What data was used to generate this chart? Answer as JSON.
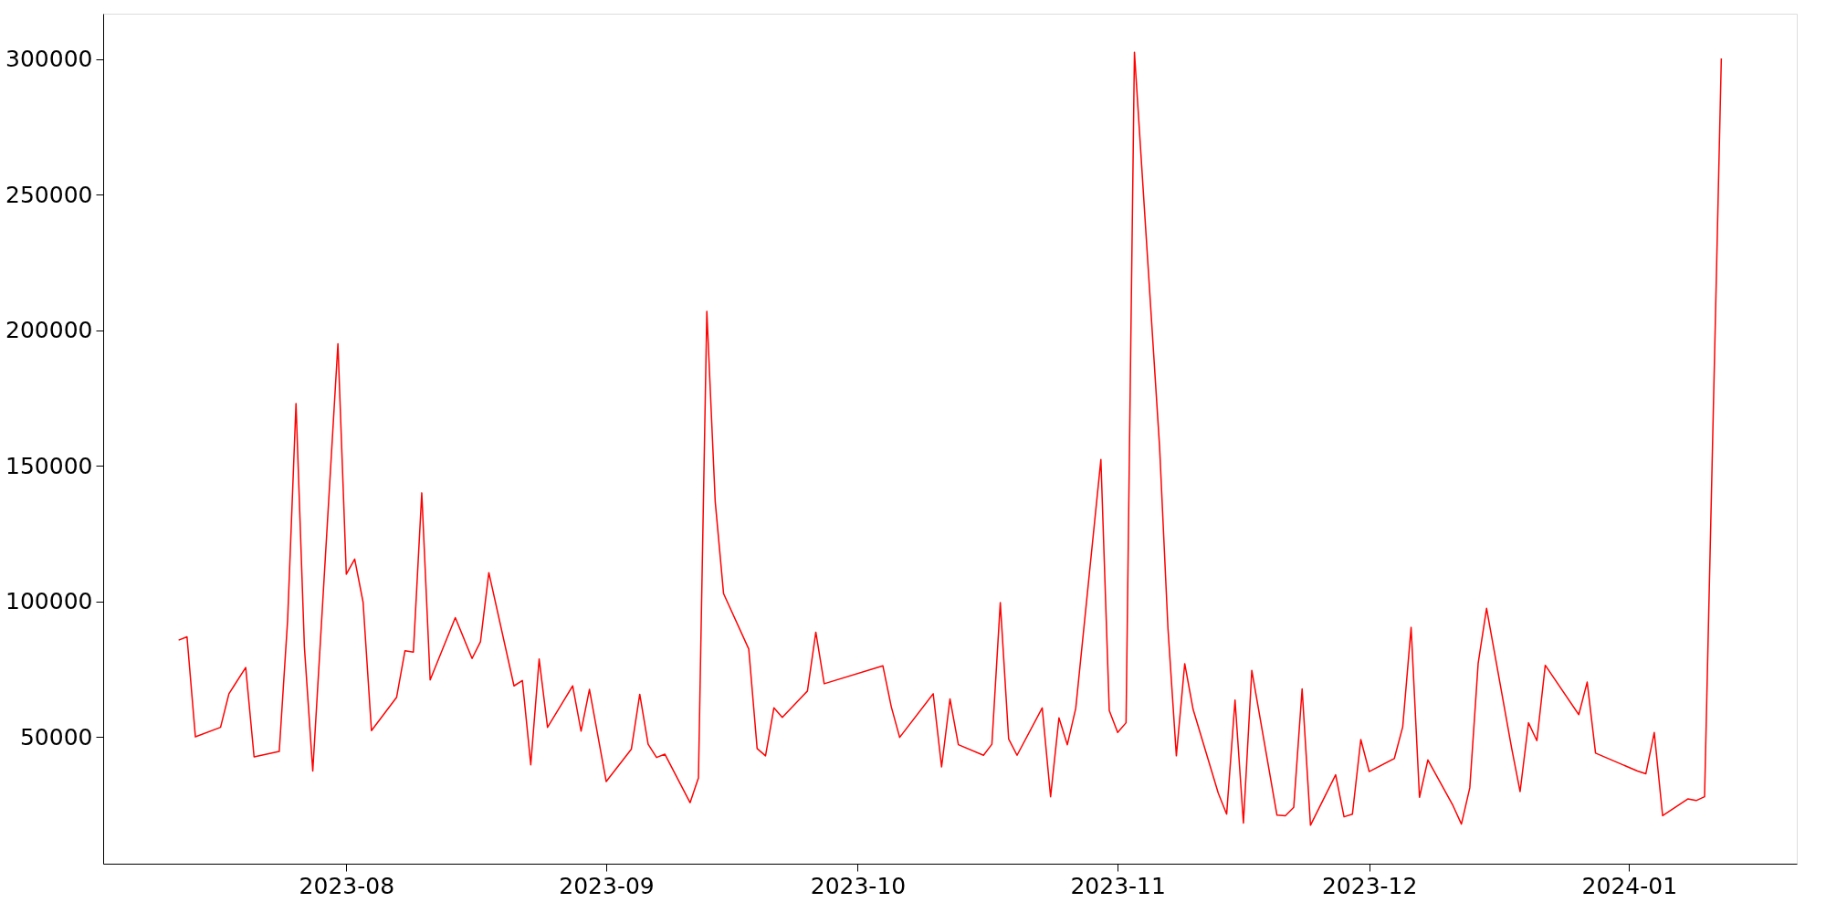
{
  "chart_data": {
    "type": "line",
    "x": [
      "2023-07-12",
      "2023-07-13",
      "2023-07-14",
      "2023-07-17",
      "2023-07-18",
      "2023-07-20",
      "2023-07-21",
      "2023-07-24",
      "2023-07-25",
      "2023-07-26",
      "2023-07-27",
      "2023-07-28",
      "2023-07-31",
      "2023-08-01",
      "2023-08-02",
      "2023-08-03",
      "2023-08-04",
      "2023-08-07",
      "2023-08-08",
      "2023-08-09",
      "2023-08-10",
      "2023-08-11",
      "2023-08-14",
      "2023-08-16",
      "2023-08-17",
      "2023-08-18",
      "2023-08-21",
      "2023-08-22",
      "2023-08-23",
      "2023-08-24",
      "2023-08-25",
      "2023-08-28",
      "2023-08-29",
      "2023-08-30",
      "2023-09-01",
      "2023-09-04",
      "2023-09-05",
      "2023-09-06",
      "2023-09-07",
      "2023-09-08",
      "2023-09-11",
      "2023-09-12",
      "2023-09-13",
      "2023-09-14",
      "2023-09-15",
      "2023-09-18",
      "2023-09-19",
      "2023-09-20",
      "2023-09-21",
      "2023-09-22",
      "2023-09-25",
      "2023-09-26",
      "2023-09-27",
      "2023-10-04",
      "2023-10-05",
      "2023-10-06",
      "2023-10-10",
      "2023-10-11",
      "2023-10-12",
      "2023-10-13",
      "2023-10-16",
      "2023-10-17",
      "2023-10-18",
      "2023-10-19",
      "2023-10-20",
      "2023-10-23",
      "2023-10-24",
      "2023-10-25",
      "2023-10-26",
      "2023-10-27",
      "2023-10-30",
      "2023-10-31",
      "2023-11-01",
      "2023-11-02",
      "2023-11-03",
      "2023-11-06",
      "2023-11-07",
      "2023-11-08",
      "2023-11-09",
      "2023-11-10",
      "2023-11-13",
      "2023-11-14",
      "2023-11-15",
      "2023-11-16",
      "2023-11-17",
      "2023-11-20",
      "2023-11-21",
      "2023-11-22",
      "2023-11-23",
      "2023-11-24",
      "2023-11-27",
      "2023-11-28",
      "2023-11-29",
      "2023-11-30",
      "2023-12-01",
      "2023-12-04",
      "2023-12-05",
      "2023-12-06",
      "2023-12-07",
      "2023-12-08",
      "2023-12-11",
      "2023-12-12",
      "2023-12-13",
      "2023-12-14",
      "2023-12-15",
      "2023-12-18",
      "2023-12-19",
      "2023-12-20",
      "2023-12-21",
      "2023-12-22",
      "2023-12-26",
      "2023-12-27",
      "2023-12-28",
      "2024-01-02",
      "2024-01-03",
      "2024-01-04",
      "2024-01-05",
      "2024-01-08",
      "2024-01-09",
      "2024-01-10",
      "2024-01-12"
    ],
    "series": [
      {
        "color": "#ff0000",
        "values": [
          85700,
          86900,
          50000,
          53500,
          65900,
          75600,
          42600,
          44600,
          93100,
          173000,
          83200,
          37400,
          195000,
          110000,
          115600,
          99700,
          52300,
          64600,
          81800,
          81300,
          140000,
          71000,
          94000,
          78900,
          85100,
          110600,
          68800,
          70800,
          39700,
          78700,
          53500,
          68800,
          52100,
          67500,
          33500,
          45500,
          65700,
          47300,
          42400,
          43600,
          25700,
          34900,
          207000,
          136800,
          102800,
          82400,
          45700,
          43000,
          60700,
          57200,
          66900,
          88600,
          69600,
          76200,
          61100,
          49800,
          65900,
          38900,
          64000,
          47100,
          43200,
          47300,
          99500,
          49200,
          43200,
          60700,
          27900,
          57000,
          47100,
          60500,
          152300,
          59700,
          51600,
          55200,
          302600,
          157000,
          90000,
          43000,
          77000,
          60100,
          29200,
          21500,
          63600,
          18200,
          74500,
          21100,
          20900,
          24000,
          67700,
          17400,
          36000,
          20500,
          21500,
          49000,
          37200,
          42000,
          53700,
          90400,
          27700,
          41500,
          24600,
          17800,
          31200,
          77200,
          97400,
          45700,
          29800,
          55200,
          48600,
          76400,
          58200,
          70200,
          44000,
          37400,
          36400,
          51600,
          20900,
          27100,
          26500,
          27900,
          300300
        ]
      }
    ],
    "xlim": [
      "2023-07-03",
      "2024-01-21"
    ],
    "xticks": [
      {
        "value": "2023-08-01",
        "label": "2023-08"
      },
      {
        "value": "2023-09-01",
        "label": "2023-09"
      },
      {
        "value": "2023-10-01",
        "label": "2023-10"
      },
      {
        "value": "2023-11-01",
        "label": "2023-11"
      },
      {
        "value": "2023-12-01",
        "label": "2023-12"
      },
      {
        "value": "2024-01-01",
        "label": "2024-01"
      }
    ],
    "ylim": [
      3200,
      316800
    ],
    "yticks": [
      50000,
      100000,
      150000,
      200000,
      250000,
      300000
    ],
    "grid": false,
    "marker": "none",
    "line_style": "solid"
  }
}
